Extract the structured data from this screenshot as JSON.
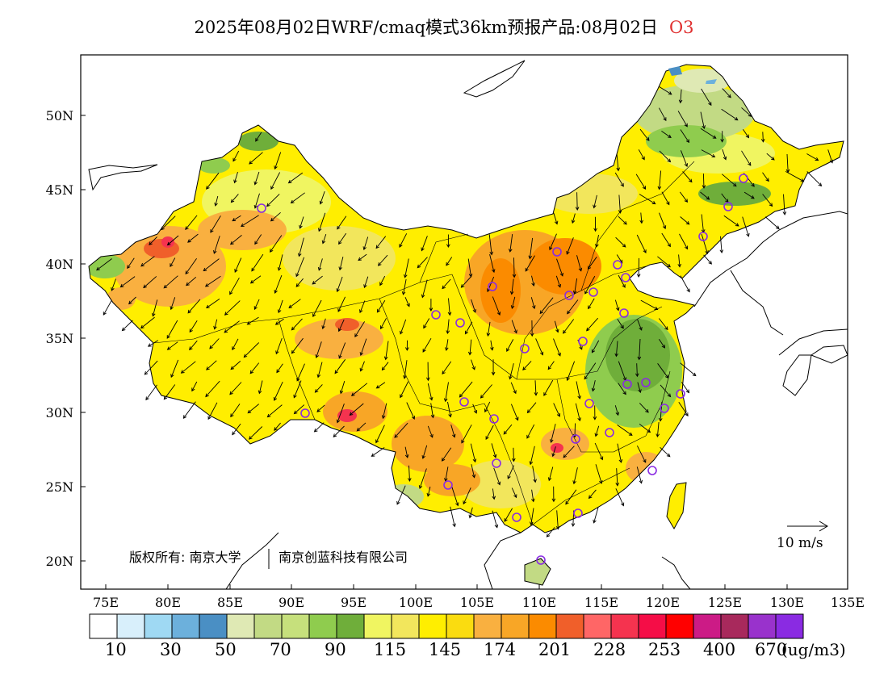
{
  "title": {
    "main": "2025年08月02日WRF/cmaq模式36km预报产品:08月02日",
    "species": "O3",
    "species_color": "#e03030"
  },
  "map": {
    "lat_labels": [
      "50N",
      "45N",
      "40N",
      "35N",
      "30N",
      "25N",
      "20N"
    ],
    "lon_labels": [
      "75E",
      "80E",
      "85E",
      "90E",
      "95E",
      "100E",
      "105E",
      "110E",
      "115E",
      "120E",
      "125E",
      "130E",
      "135E"
    ],
    "copyright": "版权所有: 南京大学",
    "company": "南京创蓝科技有限公司",
    "wind_reference": "10 m/s"
  },
  "colorbar": {
    "colors": [
      "#ffffff",
      "#d8effb",
      "#9fd9f3",
      "#6cb0dc",
      "#4a8fc4",
      "#dfe9b4",
      "#c2da84",
      "#c6e07c",
      "#8fcc4e",
      "#6fae3a",
      "#f0f561",
      "#f2e65c",
      "#ffee00",
      "#fadc10",
      "#f9b040",
      "#f8a626",
      "#fb8b00",
      "#f05f2a",
      "#ff6666",
      "#f5334f",
      "#f50d47",
      "#ff0000",
      "#cc1b86",
      "#a8295c",
      "#9932cc",
      "#8a2be2"
    ],
    "labels": [
      "10",
      "30",
      "50",
      "70",
      "90",
      "115",
      "145",
      "174",
      "201",
      "228",
      "253",
      "400",
      "670"
    ],
    "unit": "(ug/m3)"
  },
  "legend_colors": {
    "low": "#6fae3a",
    "mid": "#ffee00",
    "high": "#fb8b00",
    "peak": "#f5334f",
    "station": "#8a2be2"
  }
}
